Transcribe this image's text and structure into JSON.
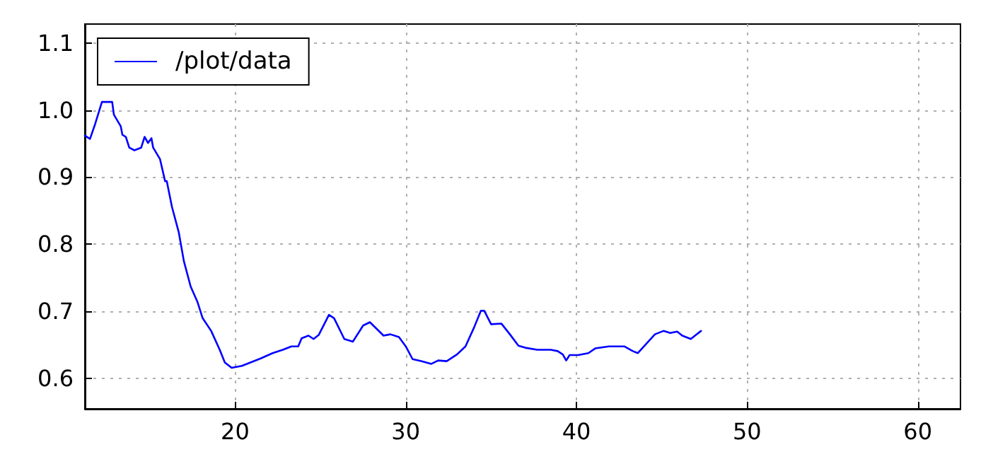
{
  "chart_data": {
    "type": "line",
    "xlim": [
      11.2,
      62.5
    ],
    "ylim": [
      0.555,
      1.128
    ],
    "xticks": [
      20,
      30,
      40,
      50,
      60
    ],
    "yticks": [
      0.6,
      0.7,
      0.8,
      0.9,
      {
        "value": 1.0,
        "label": "1.0"
      },
      1.1
    ],
    "grid": true,
    "legend": "top left",
    "marker": "none",
    "line_style": "solid",
    "series": [
      {
        "name": "/plot/data",
        "color": "#0000ff",
        "x": [
          11.2,
          11.5,
          11.8,
          12.2,
          12.8,
          12.9,
          13.3,
          13.4,
          13.6,
          13.8,
          14.1,
          14.5,
          14.7,
          14.9,
          15.1,
          15.2,
          15.6,
          15.9,
          16.0,
          16.3,
          16.7,
          17.0,
          17.4,
          17.8,
          18.1,
          18.6,
          19.1,
          19.4,
          19.8,
          20.4,
          20.9,
          21.5,
          22.2,
          22.8,
          23.3,
          23.7,
          23.9,
          24.3,
          24.6,
          24.9,
          25.5,
          25.8,
          26.4,
          26.9,
          27.5,
          27.9,
          28.1,
          28.7,
          29.1,
          29.6,
          30.0,
          30.4,
          30.9,
          31.5,
          31.9,
          32.4,
          33.0,
          33.5,
          34.0,
          34.4,
          34.6,
          35.0,
          35.6,
          36.1,
          36.6,
          37.0,
          37.7,
          38.5,
          38.9,
          39.2,
          39.4,
          39.6,
          40.1,
          40.7,
          41.1,
          41.9,
          42.8,
          43.3,
          43.6,
          44.1,
          44.6,
          45.1,
          45.5,
          45.9,
          46.2,
          46.7,
          47.0,
          47.3
        ],
        "values": [
          0.962,
          0.957,
          0.979,
          1.012,
          1.012,
          0.993,
          0.976,
          0.963,
          0.96,
          0.944,
          0.94,
          0.944,
          0.96,
          0.951,
          0.958,
          0.944,
          0.927,
          0.894,
          0.894,
          0.856,
          0.818,
          0.775,
          0.737,
          0.714,
          0.69,
          0.671,
          0.643,
          0.624,
          0.616,
          0.619,
          0.624,
          0.63,
          0.638,
          0.643,
          0.648,
          0.648,
          0.66,
          0.664,
          0.659,
          0.665,
          0.695,
          0.69,
          0.659,
          0.655,
          0.679,
          0.684,
          0.679,
          0.664,
          0.666,
          0.662,
          0.648,
          0.629,
          0.626,
          0.622,
          0.627,
          0.626,
          0.636,
          0.648,
          0.676,
          0.701,
          0.701,
          0.681,
          0.682,
          0.666,
          0.649,
          0.646,
          0.643,
          0.643,
          0.641,
          0.636,
          0.627,
          0.635,
          0.635,
          0.638,
          0.645,
          0.648,
          0.648,
          0.641,
          0.638,
          0.652,
          0.666,
          0.671,
          0.668,
          0.67,
          0.664,
          0.659,
          0.665,
          0.671
        ]
      }
    ]
  }
}
